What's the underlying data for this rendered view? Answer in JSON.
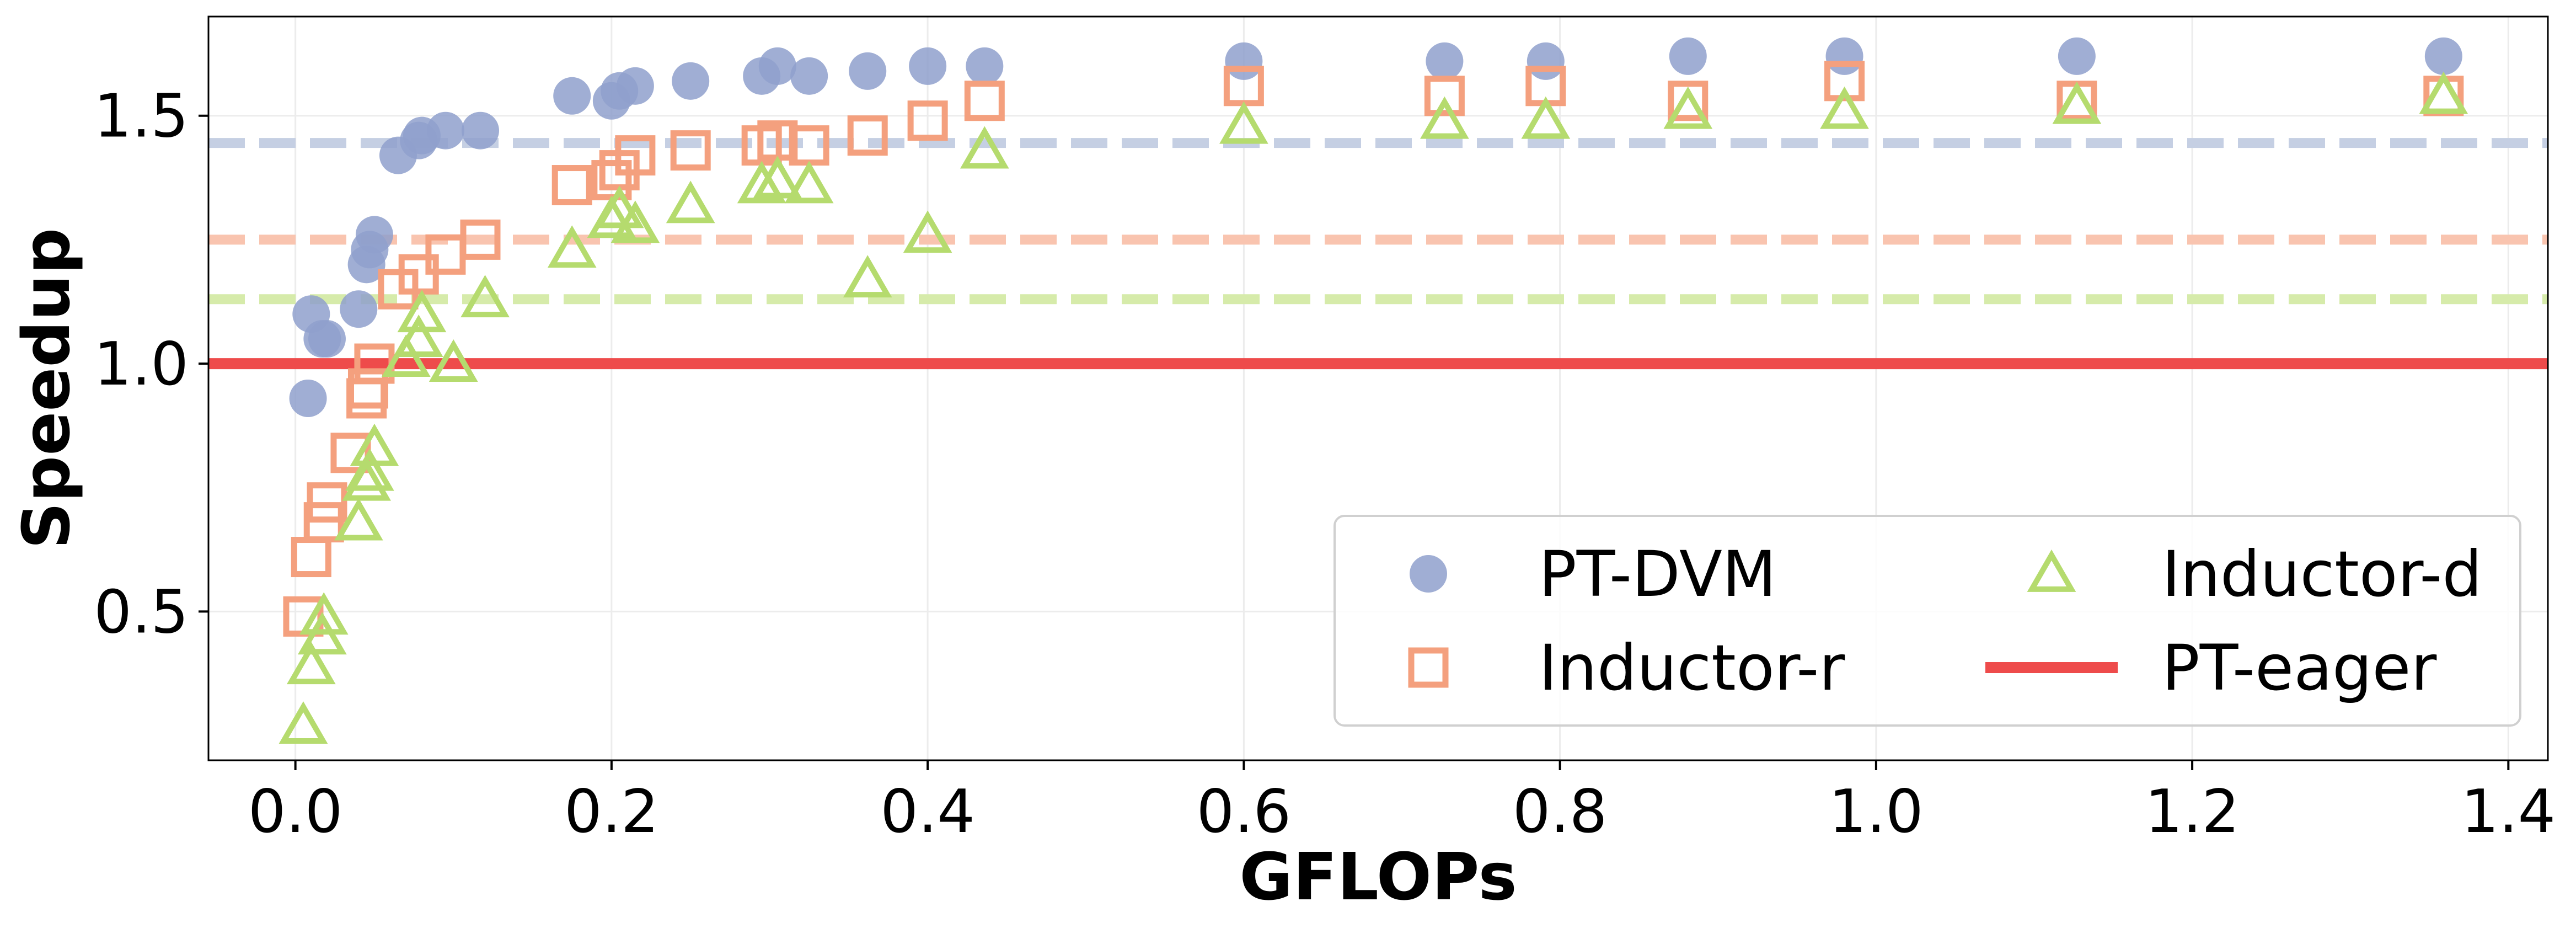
{
  "chart_data": {
    "type": "scatter",
    "xlabel": "GFLOPs",
    "ylabel": "Speedup",
    "xlim": [
      -0.055,
      1.425
    ],
    "ylim": [
      0.2,
      1.7
    ],
    "x_ticks": [
      0.0,
      0.2,
      0.4,
      0.6,
      0.8,
      1.0,
      1.2,
      1.4
    ],
    "x_tick_labels": [
      "0.0",
      "0.2",
      "0.4",
      "0.6",
      "0.8",
      "1.0",
      "1.2",
      "1.4"
    ],
    "y_ticks": [
      0.5,
      1.0,
      1.5
    ],
    "y_tick_labels": [
      "0.5",
      "1.0",
      "1.5"
    ],
    "grid": true,
    "legend_position": "lower-right",
    "legend_columns": 2,
    "series": [
      {
        "name": "PT-DVM",
        "marker": "circle",
        "color": "#8fa0cc",
        "points": [
          [
            0.008,
            0.93
          ],
          [
            0.01,
            1.1
          ],
          [
            0.017,
            1.05
          ],
          [
            0.02,
            1.05
          ],
          [
            0.04,
            1.11
          ],
          [
            0.045,
            1.2
          ],
          [
            0.047,
            1.23
          ],
          [
            0.05,
            1.26
          ],
          [
            0.065,
            1.42
          ],
          [
            0.078,
            1.45
          ],
          [
            0.08,
            1.46
          ],
          [
            0.095,
            1.47
          ],
          [
            0.117,
            1.47
          ],
          [
            0.175,
            1.54
          ],
          [
            0.2,
            1.53
          ],
          [
            0.205,
            1.55
          ],
          [
            0.215,
            1.56
          ],
          [
            0.25,
            1.57
          ],
          [
            0.295,
            1.58
          ],
          [
            0.305,
            1.6
          ],
          [
            0.325,
            1.58
          ],
          [
            0.362,
            1.59
          ],
          [
            0.4,
            1.6
          ],
          [
            0.436,
            1.6
          ],
          [
            0.6,
            1.61
          ],
          [
            0.727,
            1.61
          ],
          [
            0.791,
            1.61
          ],
          [
            0.881,
            1.62
          ],
          [
            0.98,
            1.62
          ],
          [
            1.127,
            1.62
          ],
          [
            1.359,
            1.62
          ]
        ]
      },
      {
        "name": "Inductor-r",
        "marker": "square",
        "color": "#f4a07e",
        "points": [
          [
            0.005,
            0.49
          ],
          [
            0.01,
            0.61
          ],
          [
            0.018,
            0.68
          ],
          [
            0.02,
            0.72
          ],
          [
            0.035,
            0.82
          ],
          [
            0.045,
            0.93
          ],
          [
            0.046,
            0.95
          ],
          [
            0.05,
            1.0
          ],
          [
            0.065,
            1.15
          ],
          [
            0.078,
            1.18
          ],
          [
            0.095,
            1.22
          ],
          [
            0.117,
            1.25
          ],
          [
            0.175,
            1.36
          ],
          [
            0.2,
            1.37
          ],
          [
            0.205,
            1.39
          ],
          [
            0.215,
            1.42
          ],
          [
            0.25,
            1.43
          ],
          [
            0.295,
            1.44
          ],
          [
            0.305,
            1.45
          ],
          [
            0.325,
            1.44
          ],
          [
            0.362,
            1.46
          ],
          [
            0.4,
            1.49
          ],
          [
            0.436,
            1.53
          ],
          [
            0.6,
            1.56
          ],
          [
            0.727,
            1.54
          ],
          [
            0.791,
            1.56
          ],
          [
            0.881,
            1.53
          ],
          [
            0.98,
            1.57
          ],
          [
            1.127,
            1.53
          ],
          [
            1.359,
            1.54
          ]
        ]
      },
      {
        "name": "Inductor-d",
        "marker": "triangle",
        "color": "#b5db6e",
        "points": [
          [
            0.005,
            0.27
          ],
          [
            0.01,
            0.39
          ],
          [
            0.017,
            0.45
          ],
          [
            0.018,
            0.49
          ],
          [
            0.04,
            0.68
          ],
          [
            0.045,
            0.76
          ],
          [
            0.047,
            0.78
          ],
          [
            0.05,
            0.83
          ],
          [
            0.07,
            1.01
          ],
          [
            0.078,
            1.05
          ],
          [
            0.08,
            1.1
          ],
          [
            0.1,
            1.0
          ],
          [
            0.12,
            1.13
          ],
          [
            0.175,
            1.23
          ],
          [
            0.2,
            1.29
          ],
          [
            0.205,
            1.31
          ],
          [
            0.215,
            1.28
          ],
          [
            0.25,
            1.32
          ],
          [
            0.295,
            1.36
          ],
          [
            0.305,
            1.37
          ],
          [
            0.325,
            1.36
          ],
          [
            0.362,
            1.17
          ],
          [
            0.4,
            1.26
          ],
          [
            0.436,
            1.43
          ],
          [
            0.6,
            1.48
          ],
          [
            0.727,
            1.49
          ],
          [
            0.791,
            1.49
          ],
          [
            0.881,
            1.51
          ],
          [
            0.98,
            1.51
          ],
          [
            1.127,
            1.52
          ],
          [
            1.359,
            1.54
          ]
        ]
      },
      {
        "name": "PT-eager",
        "marker": "line",
        "color": "#ee4b4b",
        "y": 1.0
      }
    ],
    "reference_lines": [
      {
        "y": 1.445,
        "color": "#c5cfe3",
        "style": "dashed"
      },
      {
        "y": 1.25,
        "color": "#f9c4af",
        "style": "dashed"
      },
      {
        "y": 1.13,
        "color": "#d6ebaa",
        "style": "dashed"
      }
    ]
  }
}
